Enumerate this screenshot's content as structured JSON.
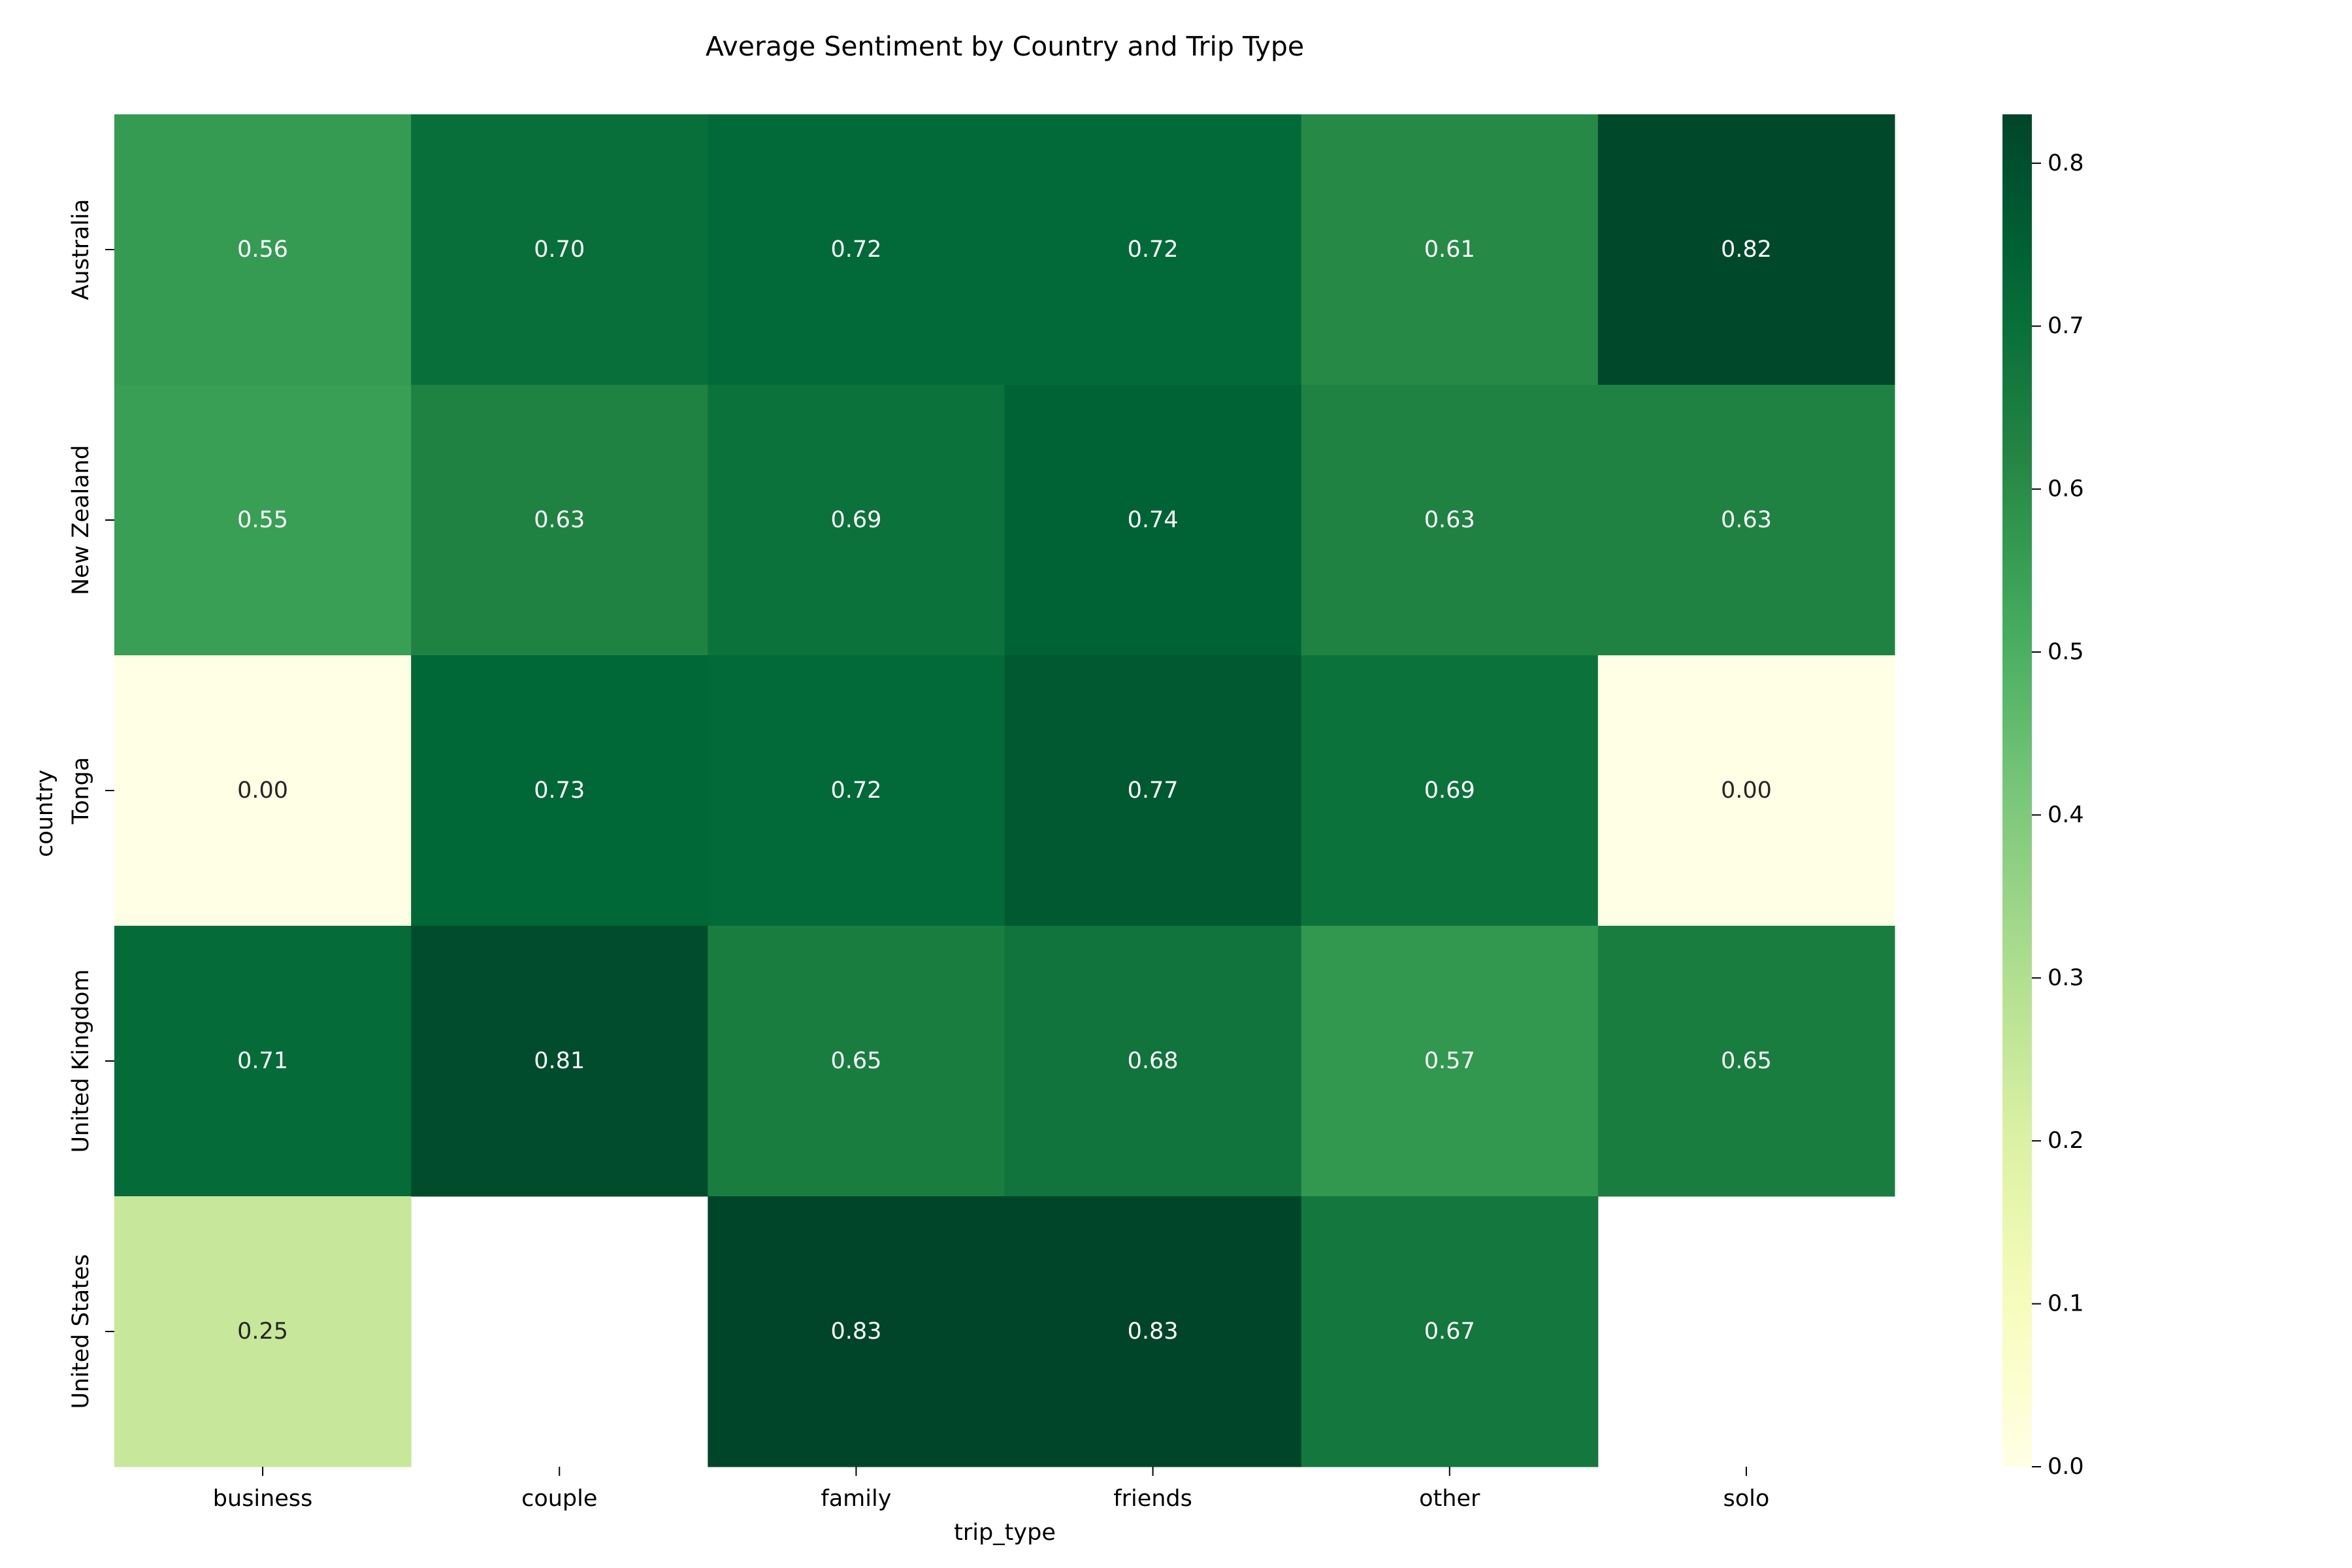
{
  "chart_data": {
    "type": "heatmap",
    "title": "Average Sentiment by Country and Trip Type",
    "xlabel": "trip_type",
    "ylabel": "country",
    "x_categories": [
      "business",
      "couple",
      "family",
      "friends",
      "other",
      "solo"
    ],
    "y_categories": [
      "Australia",
      "New Zealand",
      "Tonga",
      "United Kingdom",
      "United States"
    ],
    "values": [
      [
        0.56,
        0.7,
        0.72,
        0.72,
        0.61,
        0.82
      ],
      [
        0.55,
        0.63,
        0.69,
        0.74,
        0.63,
        0.63
      ],
      [
        0.0,
        0.73,
        0.72,
        0.77,
        0.69,
        0.0
      ],
      [
        0.71,
        0.81,
        0.65,
        0.68,
        0.57,
        0.65
      ],
      [
        0.25,
        null,
        0.83,
        0.83,
        0.67,
        null
      ]
    ],
    "value_format": "0.00",
    "colormap": "YlGn",
    "color_range": [
      0,
      0.83
    ],
    "colorbar_ticks": [
      "0.0",
      "0.1",
      "0.2",
      "0.3",
      "0.4",
      "0.5",
      "0.6",
      "0.7",
      "0.8"
    ],
    "missing_cells_blank": true
  }
}
